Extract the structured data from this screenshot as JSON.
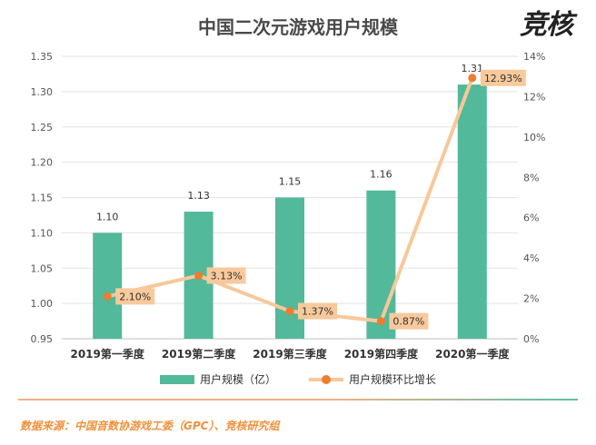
{
  "header": {
    "title": "中国二次元游戏用户规模",
    "logo_text": "竞核"
  },
  "chart_data": {
    "type": "bar",
    "title": "中国二次元游戏用户规模",
    "categories": [
      "2019第一季度",
      "2019第二季度",
      "2019第三季度",
      "2019第四季度",
      "2020第一季度"
    ],
    "series": [
      {
        "name": "用户规模（亿）",
        "type": "bar",
        "axis": "left",
        "values": [
          1.1,
          1.13,
          1.15,
          1.16,
          1.31
        ],
        "labels": [
          "1.10",
          "1.13",
          "1.15",
          "1.16",
          "1.31"
        ],
        "color": "#52b99a"
      },
      {
        "name": "用户规模环比增长",
        "type": "line",
        "axis": "right",
        "values": [
          2.1,
          3.13,
          1.37,
          0.87,
          12.93
        ],
        "labels": [
          "2.10%",
          "3.13%",
          "1.37%",
          "0.87%",
          "12.93%"
        ],
        "color": "#f7c89a",
        "marker_color": "#ed7d31",
        "label_bg": "#f8c99b"
      }
    ],
    "y_left": {
      "min": 0.95,
      "max": 1.35,
      "step": 0.05,
      "ticks": [
        "0.95",
        "1.00",
        "1.05",
        "1.10",
        "1.15",
        "1.20",
        "1.25",
        "1.30",
        "1.35"
      ]
    },
    "y_right": {
      "min": 0,
      "max": 14,
      "step": 2,
      "ticks": [
        "0%",
        "2%",
        "4%",
        "6%",
        "8%",
        "10%",
        "12%",
        "14%"
      ]
    },
    "grid": true,
    "legend": "bottom"
  },
  "footer": {
    "source": "数据来源：中国音数协游戏工委（GPC）、竞核研究组"
  }
}
